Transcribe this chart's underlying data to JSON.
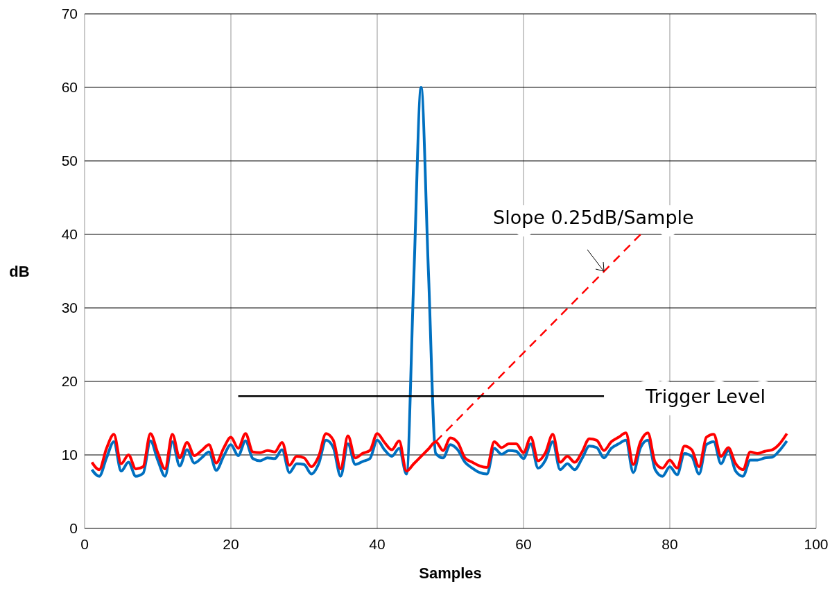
{
  "chart_data": {
    "type": "line",
    "xlabel": "Samples",
    "ylabel": "dB",
    "xlim": [
      0,
      100
    ],
    "xticks": [
      0,
      20,
      40,
      60,
      80,
      100
    ],
    "ylim": [
      0,
      70
    ],
    "yticks": [
      0,
      10,
      20,
      30,
      40,
      50,
      60,
      70
    ],
    "grid": true,
    "legend": false,
    "x": [
      1,
      2,
      3,
      4,
      5,
      6,
      7,
      8,
      9,
      10,
      11,
      12,
      13,
      14,
      15,
      16,
      17,
      18,
      19,
      20,
      21,
      22,
      23,
      24,
      25,
      26,
      27,
      28,
      29,
      30,
      31,
      32,
      33,
      34,
      35,
      36,
      37,
      38,
      39,
      40,
      41,
      42,
      43,
      44,
      45,
      46,
      47,
      48,
      49,
      50,
      51,
      52,
      53,
      54,
      55,
      56,
      57,
      58,
      59,
      60,
      61,
      62,
      63,
      64,
      65,
      66,
      67,
      68,
      69,
      70,
      71,
      72,
      73,
      74,
      75,
      76,
      77,
      78,
      79,
      80,
      81,
      82,
      83,
      84,
      85,
      86,
      87,
      88,
      89,
      90,
      91,
      92,
      93,
      94,
      95,
      96
    ],
    "series": [
      {
        "color": "#0070c0",
        "values": [
          8.0,
          7.1,
          9.6,
          11.8,
          7.8,
          9.0,
          7.1,
          7.5,
          11.9,
          9.3,
          7.1,
          11.8,
          8.5,
          10.7,
          8.9,
          9.6,
          10.4,
          7.9,
          9.8,
          11.4,
          9.9,
          11.9,
          9.5,
          9.2,
          9.6,
          9.5,
          10.7,
          7.6,
          8.8,
          8.7,
          7.4,
          8.8,
          12.0,
          11.0,
          7.1,
          11.5,
          8.7,
          9.1,
          9.5,
          12.0,
          10.7,
          9.8,
          10.9,
          7.4,
          34,
          60,
          35,
          10.2,
          9.6,
          11.4,
          10.7,
          9.0,
          8.2,
          7.6,
          7.4,
          10.9,
          10.1,
          10.6,
          10.5,
          9.5,
          11.5,
          8.2,
          9.3,
          11.8,
          8.0,
          8.8,
          8.0,
          9.5,
          11.2,
          11.0,
          9.6,
          10.9,
          11.5,
          12.0,
          7.6,
          11.0,
          12.0,
          8.0,
          7.1,
          8.4,
          7.3,
          10.2,
          9.8,
          7.4,
          11.4,
          11.8,
          8.8,
          10.6,
          7.8,
          7.1,
          9.3,
          9.3,
          9.6,
          9.7,
          10.6,
          11.9
        ]
      },
      {
        "color": "#ff0000",
        "values": [
          9.0,
          8.0,
          10.9,
          12.8,
          8.8,
          10.0,
          8.1,
          8.4,
          12.9,
          10.3,
          8.1,
          12.8,
          9.6,
          11.7,
          9.9,
          10.6,
          11.4,
          8.9,
          10.9,
          12.4,
          10.9,
          12.9,
          10.4,
          10.3,
          10.6,
          10.4,
          11.7,
          8.6,
          9.8,
          9.6,
          8.4,
          9.8,
          12.9,
          12.0,
          8.1,
          12.6,
          9.6,
          10.2,
          10.6,
          12.9,
          11.7,
          10.7,
          11.9,
          7.8,
          8.8,
          9.8,
          10.8,
          11.8,
          10.6,
          12.3,
          11.7,
          9.6,
          9.0,
          8.5,
          8.3,
          11.8,
          11.0,
          11.5,
          11.5,
          10.3,
          12.4,
          9.2,
          10.3,
          12.8,
          9.0,
          9.8,
          9.0,
          10.4,
          12.2,
          12.0,
          10.6,
          11.8,
          12.4,
          13.0,
          8.7,
          11.8,
          13.0,
          9.0,
          8.2,
          9.3,
          8.2,
          11.2,
          10.7,
          8.4,
          12.4,
          12.8,
          9.8,
          11.0,
          8.8,
          8.0,
          10.4,
          10.2,
          10.5,
          10.7,
          11.5,
          12.9
        ]
      },
      {
        "color": "#ff0000",
        "line_style": "dashed",
        "x": [
          48,
          76
        ],
        "values": [
          11.8,
          40
        ]
      },
      {
        "name": "Trigger Level",
        "color": "#000000",
        "x": [
          21,
          71
        ],
        "values": [
          18,
          18
        ]
      }
    ],
    "annotations": [
      {
        "text": "Slope 0.25dB/Sample",
        "x": 71,
        "y": 35
      }
    ]
  }
}
